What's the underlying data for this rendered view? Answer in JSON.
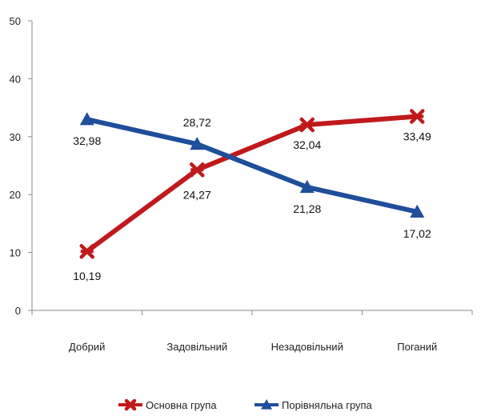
{
  "chart_data": {
    "type": "line",
    "title": "",
    "xlabel": "",
    "ylabel": "",
    "categories": [
      "Добрий",
      "Задовільний",
      "Незадовільний",
      "Поганий"
    ],
    "ylim": [
      0,
      50
    ],
    "yticks": [
      0,
      10,
      20,
      30,
      40,
      50
    ],
    "grid": false,
    "legend_position": "bottom",
    "series": [
      {
        "name": "Основна група",
        "values": [
          10.19,
          24.27,
          32.04,
          33.49
        ],
        "labels": [
          "10,19",
          "24,27",
          "32,04",
          "33,49"
        ],
        "color": "#C0191C",
        "marker": "x"
      },
      {
        "name": "Порівняльна група",
        "values": [
          32.98,
          28.72,
          21.28,
          17.02
        ],
        "labels": [
          "32,98",
          "28,72",
          "21,28",
          "17,02"
        ],
        "color": "#1F4E9A",
        "marker": "triangle"
      }
    ]
  }
}
